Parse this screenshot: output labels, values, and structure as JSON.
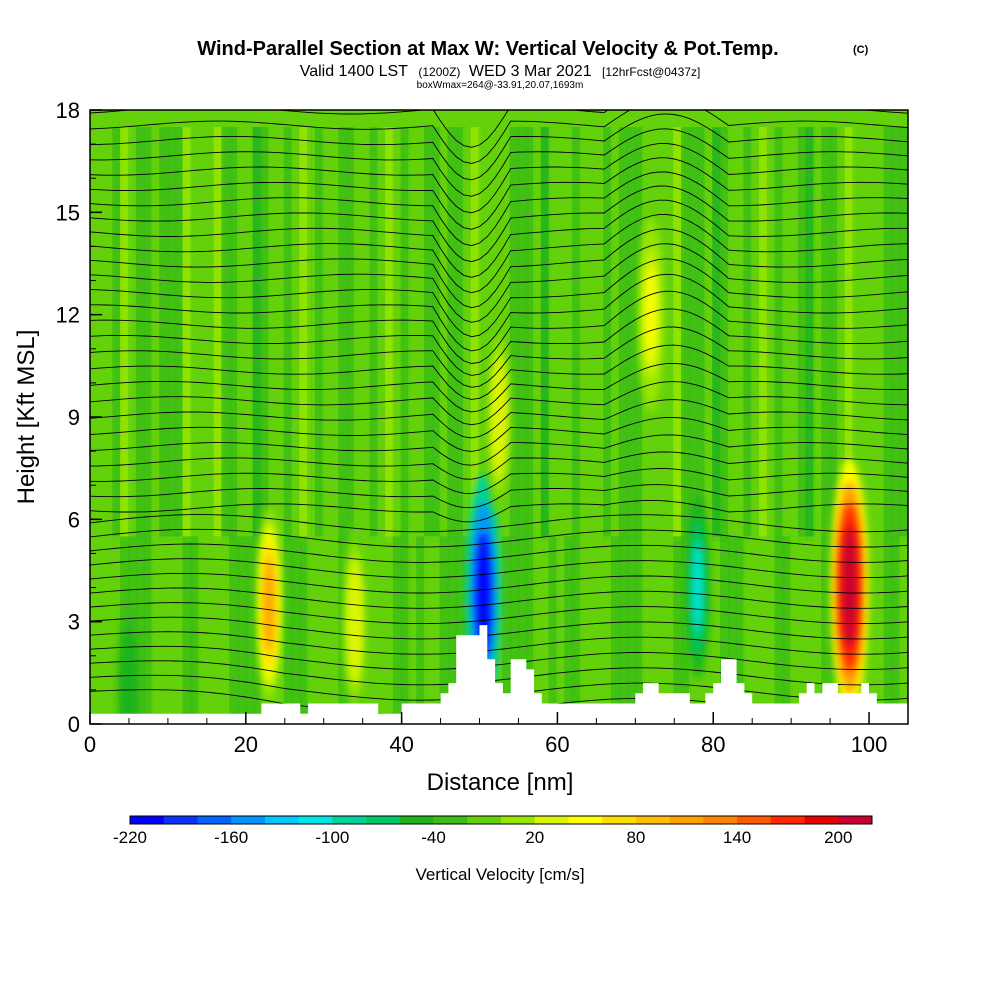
{
  "chart_data": {
    "type": "heatmap",
    "title": "Wind-Parallel Section at Max W: Vertical Velocity & Pot.Temp.",
    "title_mark": "(C)",
    "subtitle": {
      "valid": "Valid 1400 LST",
      "utc": "(1200Z)",
      "date": "WED 3 Mar 2021",
      "forecast": "[12hrFcst@0437z]"
    },
    "box_info": "boxWmax=264@-33.91,20.07,1693m",
    "xlabel": "Distance [nm]",
    "ylabel": "Height [Kft MSL]",
    "xlim": [
      0,
      105
    ],
    "ylim": [
      0,
      18
    ],
    "x_ticks": [
      "0",
      "20",
      "40",
      "60",
      "80",
      "100"
    ],
    "y_ticks": [
      "0",
      "3",
      "6",
      "9",
      "12",
      "15",
      "18"
    ],
    "colorbar": {
      "label": "Vertical Velocity [cm/s]",
      "ticks": [
        "-220",
        "-160",
        "-100",
        "-40",
        "20",
        "80",
        "140",
        "200"
      ],
      "colors": [
        "#0000ff",
        "#0a32ff",
        "#0064ff",
        "#0096ff",
        "#00c8ff",
        "#00e6e6",
        "#00d29b",
        "#00c864",
        "#1eb41e",
        "#3cbe14",
        "#64d20a",
        "#96e600",
        "#dcf500",
        "#ffff00",
        "#ffdc00",
        "#ffbe00",
        "#ffa000",
        "#ff8200",
        "#ff5a00",
        "#ff2800",
        "#e60000",
        "#c80032"
      ]
    },
    "terrain_heights_kft": [
      0.3,
      0.3,
      0.3,
      0.3,
      0.3,
      0.3,
      0.3,
      0.3,
      0.3,
      0.3,
      0.3,
      0.3,
      0.3,
      0.3,
      0.3,
      0.3,
      0.3,
      0.3,
      0.3,
      0.3,
      0.3,
      0.3,
      0.6,
      0.6,
      0.6,
      0.6,
      0.6,
      0.3,
      0.6,
      0.6,
      0.6,
      0.6,
      0.6,
      0.6,
      0.6,
      0.6,
      0.6,
      0.3,
      0.3,
      0.3,
      0.6,
      0.6,
      0.6,
      0.6,
      0.6,
      0.9,
      1.2,
      2.6,
      2.6,
      2.6,
      2.9,
      1.9,
      1.2,
      0.9,
      1.9,
      1.9,
      1.6,
      0.9,
      0.6,
      0.6,
      0.6,
      0.6,
      0.6,
      0.6,
      0.6,
      0.6,
      0.6,
      0.6,
      0.6,
      0.6,
      0.9,
      1.2,
      1.2,
      0.9,
      0.9,
      0.9,
      0.9,
      0.6,
      0.6,
      0.9,
      1.2,
      1.9,
      1.9,
      1.2,
      0.9,
      0.6,
      0.6,
      0.6,
      0.6,
      0.6,
      0.6,
      0.9,
      1.2,
      0.9,
      1.2,
      1.2,
      0.9,
      0.9,
      0.9,
      1.2,
      0.9,
      0.6,
      0.6,
      0.6,
      0.6,
      0.6
    ],
    "velocity_features": [
      {
        "x": 23,
        "y": 3.5,
        "w_cm_s": 140
      },
      {
        "x": 34,
        "y": 3.0,
        "w_cm_s": 60
      },
      {
        "x": 50.5,
        "y": 3.8,
        "w_cm_s": -220
      },
      {
        "x": 52.5,
        "y": 9.0,
        "w_cm_s": 60
      },
      {
        "x": 72,
        "y": 12.0,
        "w_cm_s": 80
      },
      {
        "x": 78,
        "y": 4.0,
        "w_cm_s": -100
      },
      {
        "x": 97.5,
        "y": 4.0,
        "w_cm_s": 264
      },
      {
        "x": 5,
        "y": 1.0,
        "w_cm_s": -40
      }
    ],
    "isentrope_count": 40,
    "grid": false
  }
}
